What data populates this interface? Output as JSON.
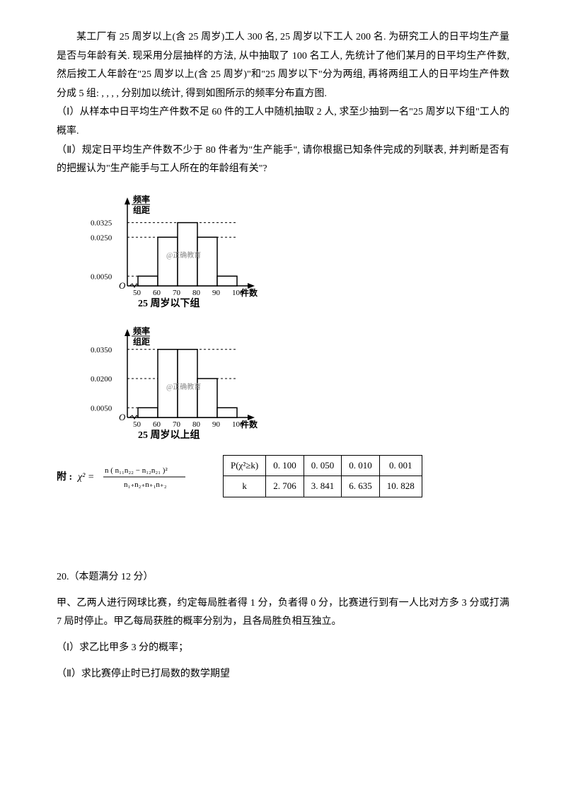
{
  "problemA": {
    "p1": "某工厂有 25 周岁以上(含 25 周岁)工人 300 名, 25 周岁以下工人 200 名. 为研究工人的日平均生产量是否与年龄有关. 现采用分层抽样的方法, 从中抽取了 100 名工人, 先统计了他们某月的日平均生产件数, 然后按工人年龄在\"25 周岁以上(含 25 周岁)\"和\"25 周岁以下\"分为两组, 再将两组工人的日平均生产件数分成 5 组: , , , , 分别加以统计, 得到如图所示的频率分布直方图.",
    "p2": "（Ⅰ）从样本中日平均生产件数不足 60 件的工人中随机抽取 2 人, 求至少抽到一名\"25 周岁以下组\"工人的概率.",
    "p3": "（Ⅱ）规定日平均生产件数不少于 80 件者为\"生产能手\", 请你根据已知条件完成的列联表, 并判断是否有的把握认为\"生产能手与工人所在的年龄组有关\"?"
  },
  "chart1": {
    "ylabel_top": "频率",
    "ylabel_bot": "组距",
    "yticks": [
      "0.0050",
      "0.0250",
      "0.0325"
    ],
    "ytick_vals": [
      0.005,
      0.025,
      0.0325
    ],
    "xticks": [
      "50",
      "60",
      "70",
      "80",
      "90",
      "100"
    ],
    "bars": [
      {
        "x": 50,
        "h": 0.005
      },
      {
        "x": 60,
        "h": 0.025
      },
      {
        "x": 70,
        "h": 0.0325
      },
      {
        "x": 80,
        "h": 0.025
      },
      {
        "x": 90,
        "h": 0.005
      }
    ],
    "xlabel": "件数",
    "title": "25 周岁以下组",
    "watermark": "@正确教育",
    "ymax": 0.04,
    "axis_color": "#000000",
    "bar_fill": "#ffffff",
    "bar_stroke": "#000000"
  },
  "chart2": {
    "ylabel_top": "频率",
    "ylabel_bot": "组距",
    "yticks": [
      "0.0050",
      "0.0200",
      "0.0350"
    ],
    "ytick_vals": [
      0.005,
      0.02,
      0.035
    ],
    "xticks": [
      "50",
      "60",
      "70",
      "80",
      "90",
      "100"
    ],
    "bars": [
      {
        "x": 50,
        "h": 0.005
      },
      {
        "x": 60,
        "h": 0.035
      },
      {
        "x": 70,
        "h": 0.035
      },
      {
        "x": 80,
        "h": 0.02
      },
      {
        "x": 90,
        "h": 0.005
      }
    ],
    "xlabel": "件数",
    "title": "25 周岁以上组",
    "watermark": "@正确教育",
    "ymax": 0.04,
    "axis_color": "#000000",
    "bar_fill": "#ffffff",
    "bar_stroke": "#000000"
  },
  "formula": {
    "prefix": "附 :",
    "lhs": "χ² =",
    "num": "n ( n₁₁n₂₂ − n₁₂n₂₁ )²",
    "den": "n₁₊n₂₊n₊₁n₊₂"
  },
  "chiTable": {
    "r1": [
      "P(χ²≥k)",
      "0. 100",
      "0. 050",
      "0. 010",
      "0. 001"
    ],
    "r2": [
      "k",
      "2. 706",
      "3. 841",
      "6. 635",
      "10. 828"
    ]
  },
  "problemB": {
    "num": "20.（本题满分 12 分）",
    "p1": "甲、乙两人进行网球比赛，约定每局胜者得 1 分，负者得 0 分，比赛进行到有一人比对方多 3 分或打满 7 局时停止。甲乙每局获胜的概率分别为，且各局胜负相互独立。",
    "p2": "（Ⅰ）求乙比甲多 3 分的概率；",
    "p3": "（Ⅱ）求比赛停止时已打局数的数学期望"
  }
}
